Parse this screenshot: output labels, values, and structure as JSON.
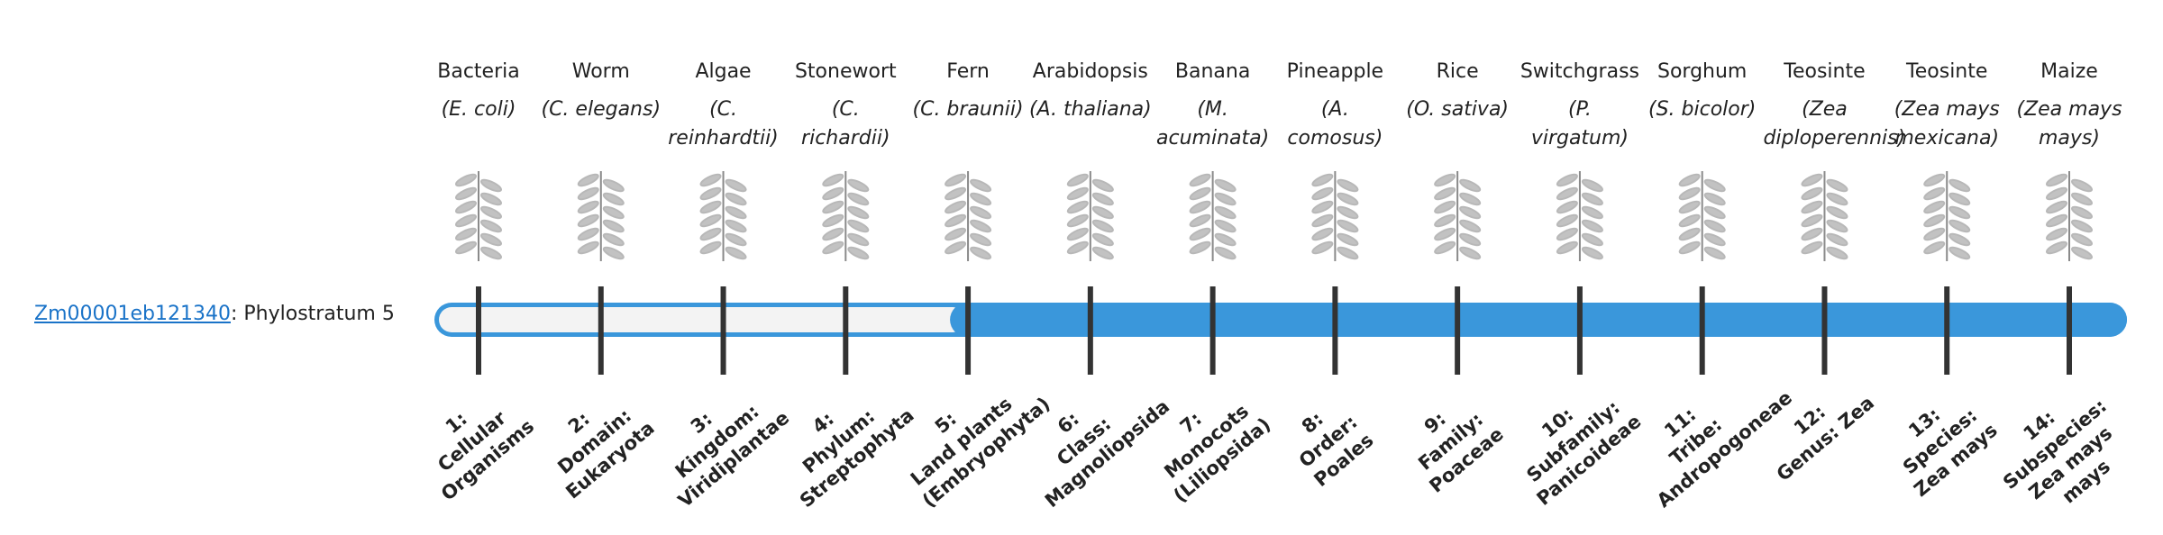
{
  "gene": {
    "id": "Zm00001eb121340",
    "separator": ":",
    "label": "Phylostratum",
    "value": 5
  },
  "columns": [
    {
      "name": "Bacteria",
      "species": "(E. coli)",
      "rank": "1:",
      "stratum": "Cellular Organisms"
    },
    {
      "name": "Worm",
      "species": "(C. elegans)",
      "rank": "2:",
      "stratum": "Domain: Eukaryota"
    },
    {
      "name": "Algae",
      "species": "(C. reinhardtii)",
      "rank": "3:",
      "stratum": "Kingdom: Viridiplantae"
    },
    {
      "name": "Stonewort",
      "species": "(C. richardii)",
      "rank": "4:",
      "stratum": "Phylum: Streptophyta"
    },
    {
      "name": "Fern",
      "species": "(C. braunii)",
      "rank": "5:",
      "stratum": "Land plants (Embryophyta)"
    },
    {
      "name": "Arabidopsis",
      "species": "(A. thaliana)",
      "rank": "6:",
      "stratum": "Class: Magnoliopsida"
    },
    {
      "name": "Banana",
      "species": "(M. acuminata)",
      "rank": "7:",
      "stratum": "Monocots (Liliopsida)"
    },
    {
      "name": "Pineapple",
      "species": "(A. comosus)",
      "rank": "8:",
      "stratum": "Order: Poales"
    },
    {
      "name": "Rice",
      "species": "(O. sativa)",
      "rank": "9:",
      "stratum": "Family: Poaceae"
    },
    {
      "name": "Switchgrass",
      "species": "(P. virgatum)",
      "rank": "10:",
      "stratum": "Subfamily: Panicoideae"
    },
    {
      "name": "Sorghum",
      "species": "(S. bicolor)",
      "rank": "11:",
      "stratum": "Tribe: Andropogoneae"
    },
    {
      "name": "Teosinte",
      "species": "(Zea diploperennis)",
      "rank": "12:",
      "stratum": "Genus: Zea"
    },
    {
      "name": "Teosinte",
      "species": "(Zea mays mexicana)",
      "rank": "13:",
      "stratum": "Species: Zea mays"
    },
    {
      "name": "Maize",
      "species": "(Zea mays mays)",
      "rank": "14:",
      "stratum": "Subspecies: Zea mays mays"
    }
  ]
}
